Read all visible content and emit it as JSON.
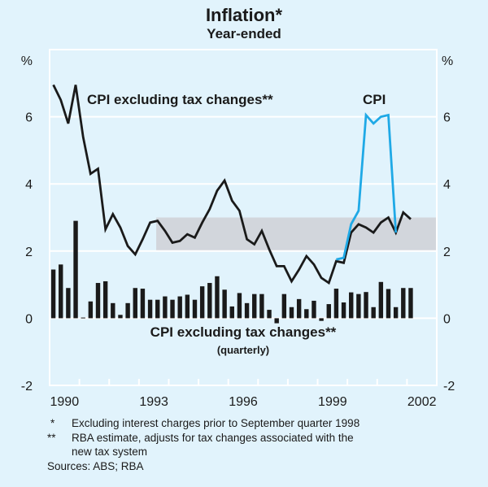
{
  "chart_data": {
    "type": "line",
    "title": "Inflation*",
    "subtitle": "Year-ended",
    "ylabel_left": "%",
    "ylabel_right": "%",
    "ylim": [
      -2,
      8
    ],
    "yticks": [
      -2,
      0,
      2,
      4,
      6
    ],
    "ytick_labels": [
      "-2",
      "0",
      "2",
      "4",
      "6"
    ],
    "xlim": [
      1990,
      2003
    ],
    "xtick_labels": [
      "1990",
      "1993",
      "1996",
      "1999",
      "2002"
    ],
    "xtick_years": [
      1990,
      1993,
      1996,
      1999,
      2002
    ],
    "grid": true,
    "start_quarter": "1990 Q1",
    "target_band": {
      "from": 1993.58,
      "to": 2003,
      "low": 2,
      "high": 3
    },
    "series": [
      {
        "name": "CPI excluding tax changes**",
        "kind": "line",
        "color": "#1a1a1a",
        "start_index": 0,
        "values": [
          6.95,
          6.5,
          5.8,
          6.95,
          5.4,
          4.3,
          4.45,
          2.65,
          3.1,
          2.7,
          2.15,
          1.9,
          2.35,
          2.85,
          2.9,
          2.6,
          2.25,
          2.3,
          2.5,
          2.4,
          2.85,
          3.25,
          3.8,
          4.1,
          3.5,
          3.2,
          2.35,
          2.2,
          2.6,
          2.05,
          1.55,
          1.55,
          1.1,
          1.45,
          1.85,
          1.6,
          1.2,
          1.05,
          1.7,
          1.65,
          2.55,
          2.8,
          2.7,
          2.55,
          2.85,
          3.0,
          2.55,
          3.15,
          2.95
        ]
      },
      {
        "name": "CPI",
        "kind": "line",
        "color": "#1fa9e6",
        "start_index": 38,
        "values": [
          1.75,
          1.8,
          2.8,
          3.2,
          6.05,
          5.8,
          6.0,
          6.05,
          2.55
        ]
      },
      {
        "name": "CPI excluding tax changes** (quarterly)",
        "kind": "bar",
        "color": "#1a1a1a",
        "start_index": 0,
        "values": [
          1.45,
          1.6,
          0.9,
          2.9,
          0.02,
          0.5,
          1.05,
          1.1,
          0.45,
          0.1,
          0.45,
          0.9,
          0.88,
          0.55,
          0.55,
          0.65,
          0.55,
          0.65,
          0.7,
          0.55,
          0.95,
          1.05,
          1.25,
          0.85,
          0.35,
          0.75,
          0.45,
          0.72,
          0.72,
          0.25,
          -0.15,
          0.72,
          0.33,
          0.57,
          0.27,
          0.52,
          -0.08,
          0.42,
          0.88,
          0.47,
          0.77,
          0.72,
          0.78,
          0.33,
          1.08,
          0.87,
          0.33,
          0.9,
          0.9
        ]
      }
    ],
    "annotations": {
      "line_label": "CPI excluding tax changes**",
      "cpi_label": "CPI",
      "bar_label": "CPI excluding tax changes**",
      "bar_sublabel": "(quarterly)"
    }
  },
  "footnotes": [
    {
      "marker": "*",
      "text": "Excluding interest charges prior to September quarter 1998"
    },
    {
      "marker": "**",
      "text": "RBA estimate, adjusts for tax changes associated with the"
    },
    {
      "marker": "",
      "text": "new tax system"
    }
  ],
  "sources": "Sources: ABS; RBA"
}
